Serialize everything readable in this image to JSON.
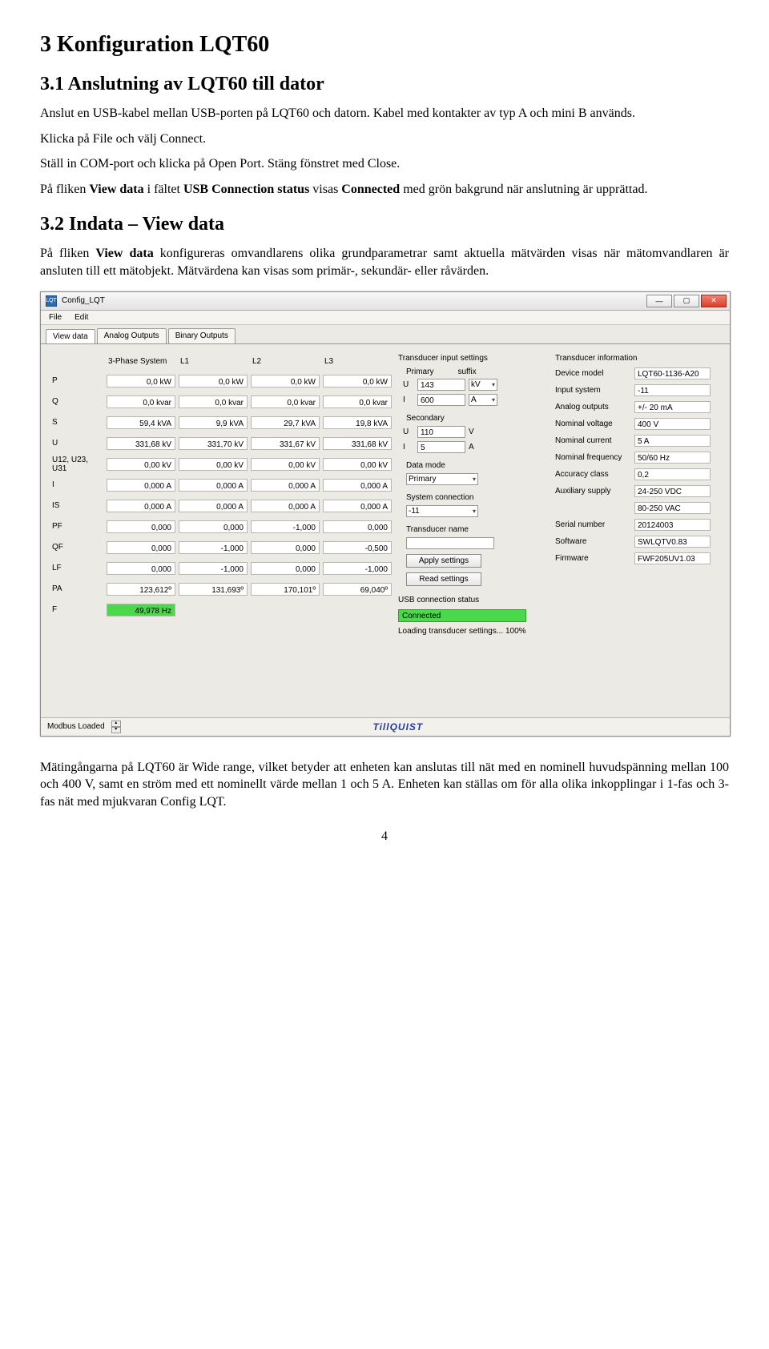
{
  "doc": {
    "h1": "3   Konfiguration LQT60",
    "h2_1": "3.1   Anslutning av LQT60 till dator",
    "p1": "Anslut en USB-kabel mellan USB-porten på LQT60 och datorn. Kabel med kontakter av typ A och mini B används.",
    "p2": "Klicka på File och välj Connect.",
    "p3": "Ställ in COM-port och klicka på Open Port. Stäng fönstret med Close.",
    "p4": "På fliken View data i fältet USB Connection status visas Connected med grön bakgrund när anslutning är upprättad.",
    "h2_2": "3.2   Indata – View data",
    "p5": "På fliken View data konfigureras omvandlarens olika grundparametrar samt aktuella mätvärden visas när mätomvandlaren är ansluten till ett mätobjekt. Mätvärdena kan visas som primär-, sekundär- eller råvärden.",
    "p6": "Mätingångarna på LQT60 är Wide range, vilket betyder att enheten kan anslutas till nät med en nominell huvudspänning mellan 100 och 400 V, samt en ström med ett nominellt värde mellan 1 och 5 A. Enheten kan ställas om för alla olika inkopplingar i 1-fas och 3-fas nät med mjukvaran Config LQT.",
    "page": "4"
  },
  "app": {
    "title": "Config_LQT",
    "menu": {
      "file": "File",
      "edit": "Edit"
    },
    "tabs": {
      "view": "View data",
      "analog": "Analog Outputs",
      "binary": "Binary Outputs"
    },
    "grid": {
      "head": {
        "sys": "3-Phase System",
        "l1": "L1",
        "l2": "L2",
        "l3": "L3"
      },
      "rows": [
        {
          "lbl": "P",
          "c": [
            "0,0 kW",
            "0,0 kW",
            "0,0 kW",
            "0,0 kW"
          ]
        },
        {
          "lbl": "Q",
          "c": [
            "0,0 kvar",
            "0,0 kvar",
            "0,0 kvar",
            "0,0 kvar"
          ]
        },
        {
          "lbl": "S",
          "c": [
            "59,4 kVA",
            "9,9 kVA",
            "29,7 kVA",
            "19,8 kVA"
          ]
        },
        {
          "lbl": "U",
          "c": [
            "331,68 kV",
            "331,70 kV",
            "331,67 kV",
            "331,68 kV"
          ]
        },
        {
          "lbl": "U12, U23, U31",
          "c": [
            "0,00 kV",
            "0,00 kV",
            "0,00 kV",
            "0,00 kV"
          ]
        },
        {
          "lbl": "I",
          "c": [
            "0,000 A",
            "0,000 A",
            "0,000 A",
            "0,000 A"
          ]
        },
        {
          "lbl": "IS",
          "c": [
            "0,000 A",
            "0,000 A",
            "0,000 A",
            "0,000 A"
          ]
        },
        {
          "lbl": "PF",
          "c": [
            "0,000",
            "0,000",
            "-1,000",
            "0,000"
          ]
        },
        {
          "lbl": "QF",
          "c": [
            "0,000",
            "-1,000",
            "0,000",
            "-0,500"
          ]
        },
        {
          "lbl": "LF",
          "c": [
            "0,000",
            "-1,000",
            "0,000",
            "-1,000"
          ]
        },
        {
          "lbl": "PA",
          "c": [
            "123,612º",
            "131,693º",
            "170,101º",
            "69,040º"
          ]
        },
        {
          "lbl": "F",
          "c": [
            "49,978 Hz",
            "",
            "",
            ""
          ],
          "green0": true
        }
      ]
    },
    "input": {
      "head": "Transducer input settings",
      "primary": "Primary",
      "suffix": "suffix",
      "u1_lbl": "U",
      "u1_val": "143",
      "u1_suf": "kV",
      "i1_lbl": "I",
      "i1_val": "600",
      "i1_suf": "A",
      "secondary": "Secondary",
      "u2_lbl": "U",
      "u2_val": "110",
      "u2_unit": "V",
      "i2_lbl": "I",
      "i2_val": "5",
      "i2_unit": "A",
      "datamode_lbl": "Data mode",
      "datamode_val": "Primary",
      "sysconn_lbl": "System connection",
      "sysconn_val": "-11",
      "tname_lbl": "Transducer name",
      "tname_val": "",
      "apply_btn": "Apply settings",
      "read_btn": "Read settings"
    },
    "info": {
      "head": "Transducer information",
      "rows": [
        {
          "k": "Device model",
          "v": "LQT60-1136-A20"
        },
        {
          "k": "Input system",
          "v": "-11"
        },
        {
          "k": "Analog outputs",
          "v": "+/- 20 mA"
        },
        {
          "k": "Nominal voltage",
          "v": "400 V"
        },
        {
          "k": "Nominal current",
          "v": "5 A"
        },
        {
          "k": "Nominal frequency",
          "v": "50/60 Hz"
        },
        {
          "k": "Accuracy class",
          "v": "0,2"
        },
        {
          "k": "Auxiliary supply",
          "v": "24-250 VDC"
        },
        {
          "k": "",
          "v": "80-250 VAC"
        },
        {
          "k": "Serial number",
          "v": "20124003"
        },
        {
          "k": "Software",
          "v": "SWLQTV0.83"
        },
        {
          "k": "Firmware",
          "v": "FWF205UV1.03"
        }
      ]
    },
    "usb": {
      "head": "USB connection status",
      "status": "Connected",
      "loading": "Loading transducer settings... 100%"
    },
    "status": {
      "left": "Modbus Loaded",
      "brand": "TillQUIST"
    }
  }
}
